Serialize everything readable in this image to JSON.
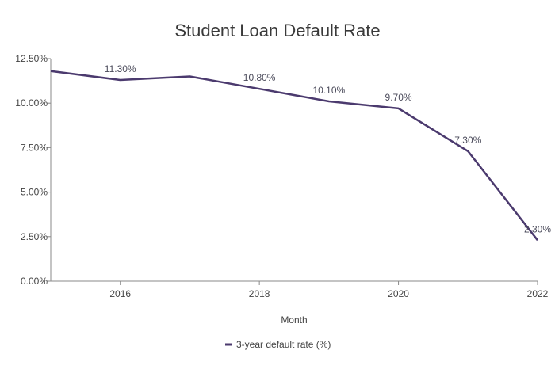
{
  "chart_data": {
    "type": "line",
    "title": "Student Loan Default Rate",
    "xlabel": "Month",
    "ylabel": "",
    "x": [
      2015,
      2016,
      2017,
      2018,
      2019,
      2020,
      2021,
      2022
    ],
    "x_ticks": [
      {
        "value": 2016,
        "label": "2016"
      },
      {
        "value": 2018,
        "label": "2018"
      },
      {
        "value": 2020,
        "label": "2020"
      },
      {
        "value": 2022,
        "label": "2022"
      }
    ],
    "xlim": [
      2015,
      2022
    ],
    "y_ticks": [
      {
        "value": 0,
        "label": "0.00%"
      },
      {
        "value": 2.5,
        "label": "2.50%"
      },
      {
        "value": 5,
        "label": "5.00%"
      },
      {
        "value": 7.5,
        "label": "7.50%"
      },
      {
        "value": 10,
        "label": "10.00%"
      },
      {
        "value": 12.5,
        "label": "12.50%"
      }
    ],
    "ylim": [
      0,
      12.5
    ],
    "grid": false,
    "legend_position": "bottom",
    "series": [
      {
        "name": "3-year default rate (%)",
        "color": "#4b3a6e",
        "values": [
          11.8,
          11.3,
          11.5,
          10.8,
          10.1,
          9.7,
          7.3,
          2.3
        ],
        "labels": [
          "",
          "11.30%",
          "",
          "10.80%",
          "10.10%",
          "9.70%",
          "7.30%",
          "2.30%"
        ]
      }
    ]
  }
}
